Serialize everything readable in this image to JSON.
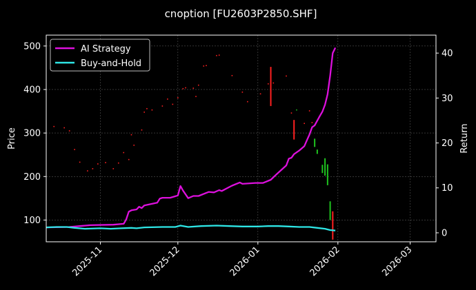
{
  "chart_data": {
    "type": "line",
    "title": "cnoption [FU2603P2850.SHF]",
    "ylabel_left": "Price",
    "ylabel_right": "Return",
    "xlim": [
      "2025-10-11",
      "2026-03-11"
    ],
    "ylim_left": [
      50,
      525
    ],
    "ylim_right": [
      -2,
      44
    ],
    "grid": true,
    "legend_position": "top-left",
    "x_ticks": [
      "2025-11-01",
      "2025-12-01",
      "2026-01-01",
      "2026-02-01",
      "2026-03-01"
    ],
    "x_tick_labels": [
      "2025-11",
      "2025-12",
      "2026-01",
      "2026-02",
      "2026-03"
    ],
    "y_ticks_left": [
      100,
      200,
      300,
      400,
      500
    ],
    "y_ticks_right": [
      0,
      10,
      20,
      30,
      40
    ],
    "legend": [
      "AI Strategy",
      "Buy-and-Hold"
    ],
    "colors": {
      "ai": "#dd10dd",
      "bh": "#2ee6e6",
      "up": "#ff2020",
      "down": "#1fc41f",
      "grid": "#555555"
    },
    "series": [
      {
        "name": "AI Strategy",
        "axis": "right",
        "points": [
          [
            "2025-10-11",
            1.2
          ],
          [
            "2025-10-20",
            1.3
          ],
          [
            "2025-10-24",
            1.5
          ],
          [
            "2025-10-28",
            1.7
          ],
          [
            "2025-11-06",
            1.8
          ],
          [
            "2025-11-10",
            2.0
          ],
          [
            "2025-11-11",
            3.0
          ],
          [
            "2025-11-12",
            4.7
          ],
          [
            "2025-11-13",
            5.0
          ],
          [
            "2025-11-15",
            5.2
          ],
          [
            "2025-11-16",
            5.8
          ],
          [
            "2025-11-17",
            5.5
          ],
          [
            "2025-11-18",
            6.1
          ],
          [
            "2025-11-23",
            6.7
          ],
          [
            "2025-11-24",
            7.6
          ],
          [
            "2025-11-25",
            7.8
          ],
          [
            "2025-11-28",
            7.8
          ],
          [
            "2025-12-01",
            8.3
          ],
          [
            "2025-12-02",
            10.4
          ],
          [
            "2025-12-03",
            9.4
          ],
          [
            "2025-12-05",
            7.7
          ],
          [
            "2025-12-07",
            8.2
          ],
          [
            "2025-12-09",
            8.2
          ],
          [
            "2025-12-13",
            9.1
          ],
          [
            "2025-12-15",
            9.0
          ],
          [
            "2025-12-17",
            9.5
          ],
          [
            "2025-12-18",
            9.3
          ],
          [
            "2025-12-21",
            10.2
          ],
          [
            "2025-12-22",
            10.5
          ],
          [
            "2025-12-25",
            11.2
          ],
          [
            "2025-12-26",
            10.9
          ],
          [
            "2025-12-31",
            11.1
          ],
          [
            "2026-01-03",
            11.1
          ],
          [
            "2026-01-06",
            11.8
          ],
          [
            "2026-01-08",
            12.9
          ],
          [
            "2026-01-12",
            15.0
          ],
          [
            "2026-01-13",
            16.5
          ],
          [
            "2026-01-14",
            16.7
          ],
          [
            "2026-01-15",
            17.5
          ],
          [
            "2026-01-17",
            18.3
          ],
          [
            "2026-01-19",
            19.3
          ],
          [
            "2026-01-20",
            20.6
          ],
          [
            "2026-01-21",
            21.9
          ],
          [
            "2026-01-22",
            23.5
          ],
          [
            "2026-01-23",
            23.9
          ],
          [
            "2026-01-25",
            26.0
          ],
          [
            "2026-01-26",
            27.0
          ],
          [
            "2026-01-27",
            28.5
          ],
          [
            "2026-01-28",
            30.8
          ],
          [
            "2026-01-29",
            35.0
          ],
          [
            "2026-01-30",
            40.0
          ],
          [
            "2026-01-31",
            41.2
          ]
        ]
      },
      {
        "name": "Buy-and-Hold",
        "axis": "right",
        "points": [
          [
            "2025-10-11",
            1.2
          ],
          [
            "2025-10-15",
            1.3
          ],
          [
            "2025-10-19",
            1.3
          ],
          [
            "2025-10-22",
            1.1
          ],
          [
            "2025-10-26",
            0.9
          ],
          [
            "2025-11-01",
            1.0
          ],
          [
            "2025-11-05",
            0.9
          ],
          [
            "2025-11-09",
            1.0
          ],
          [
            "2025-11-13",
            1.1
          ],
          [
            "2025-11-15",
            1.0
          ],
          [
            "2025-11-18",
            1.2
          ],
          [
            "2025-11-25",
            1.3
          ],
          [
            "2025-11-30",
            1.3
          ],
          [
            "2025-12-02",
            1.6
          ],
          [
            "2025-12-05",
            1.3
          ],
          [
            "2025-12-10",
            1.5
          ],
          [
            "2025-12-16",
            1.6
          ],
          [
            "2025-12-21",
            1.5
          ],
          [
            "2025-12-26",
            1.4
          ],
          [
            "2026-01-01",
            1.4
          ],
          [
            "2026-01-05",
            1.5
          ],
          [
            "2026-01-09",
            1.5
          ],
          [
            "2026-01-13",
            1.4
          ],
          [
            "2026-01-17",
            1.3
          ],
          [
            "2026-01-21",
            1.3
          ],
          [
            "2026-01-24",
            1.1
          ],
          [
            "2026-01-27",
            0.9
          ],
          [
            "2026-01-29",
            0.6
          ],
          [
            "2026-01-31",
            0.5
          ]
        ]
      }
    ],
    "price_marks": [
      {
        "date": "2025-10-14",
        "value": 315,
        "dir": "up"
      },
      {
        "date": "2025-10-18",
        "value": 312,
        "dir": "up"
      },
      {
        "date": "2025-10-20",
        "value": 305,
        "dir": "up"
      },
      {
        "date": "2025-10-22",
        "value": 262,
        "dir": "up"
      },
      {
        "date": "2025-10-24",
        "value": 233,
        "dir": "up"
      },
      {
        "date": "2025-10-27",
        "value": 213,
        "dir": "up"
      },
      {
        "date": "2025-10-29",
        "value": 218,
        "dir": "up"
      },
      {
        "date": "2025-10-31",
        "value": 229,
        "dir": "up"
      },
      {
        "date": "2025-11-03",
        "value": 232,
        "dir": "up"
      },
      {
        "date": "2025-11-06",
        "value": 218,
        "dir": "up"
      },
      {
        "date": "2025-11-08",
        "value": 231,
        "dir": "up"
      },
      {
        "date": "2025-11-10",
        "value": 255,
        "dir": "up"
      },
      {
        "date": "2025-11-12",
        "value": 239,
        "dir": "up"
      },
      {
        "date": "2025-11-13",
        "value": 296,
        "dir": "up"
      },
      {
        "date": "2025-11-14",
        "value": 272,
        "dir": "up"
      },
      {
        "date": "2025-11-17",
        "value": 307,
        "dir": "up"
      },
      {
        "date": "2025-11-18",
        "value": 348,
        "dir": "up"
      },
      {
        "date": "2025-11-19",
        "value": 356,
        "dir": "up"
      },
      {
        "date": "2025-11-21",
        "value": 353,
        "dir": "up"
      },
      {
        "date": "2025-11-25",
        "value": 362,
        "dir": "up"
      },
      {
        "date": "2025-11-27",
        "value": 378,
        "dir": "up"
      },
      {
        "date": "2025-11-29",
        "value": 366,
        "dir": "up"
      },
      {
        "date": "2025-12-01",
        "value": 381,
        "dir": "up"
      },
      {
        "date": "2025-12-03",
        "value": 402,
        "dir": "up"
      },
      {
        "date": "2025-12-04",
        "value": 404,
        "dir": "up"
      },
      {
        "date": "2025-12-07",
        "value": 403,
        "dir": "up"
      },
      {
        "date": "2025-12-08",
        "value": 384,
        "dir": "up"
      },
      {
        "date": "2025-12-09",
        "value": 410,
        "dir": "up"
      },
      {
        "date": "2025-12-11",
        "value": 454,
        "dir": "up"
      },
      {
        "date": "2025-12-12",
        "value": 455,
        "dir": "up"
      },
      {
        "date": "2025-12-16",
        "value": 478,
        "dir": "up"
      },
      {
        "date": "2025-12-17",
        "value": 479,
        "dir": "up"
      },
      {
        "date": "2025-12-22",
        "value": 432,
        "dir": "up"
      },
      {
        "date": "2025-12-26",
        "value": 394,
        "dir": "up"
      },
      {
        "date": "2025-12-28",
        "value": 372,
        "dir": "up"
      },
      {
        "date": "2026-01-02",
        "value": 390,
        "dir": "up"
      },
      {
        "date": "2026-01-05",
        "value": 413,
        "dir": "up"
      },
      {
        "date": "2026-01-06",
        "value": 452,
        "dir": "up",
        "low": 362
      },
      {
        "date": "2026-01-07",
        "value": 415,
        "dir": "up"
      },
      {
        "date": "2026-01-12",
        "value": 431,
        "dir": "up"
      },
      {
        "date": "2026-01-14",
        "value": 346,
        "dir": "up"
      },
      {
        "date": "2026-01-15",
        "value": 330,
        "dir": "up",
        "low": 285
      },
      {
        "date": "2026-01-16",
        "value": 353,
        "dir": "down"
      },
      {
        "date": "2026-01-19",
        "value": 322,
        "dir": "up"
      },
      {
        "date": "2026-01-21",
        "value": 351,
        "dir": "up"
      },
      {
        "date": "2026-01-22",
        "value": 324,
        "dir": "up"
      },
      {
        "date": "2026-01-23",
        "value": 287,
        "dir": "down",
        "low": 268
      },
      {
        "date": "2026-01-24",
        "value": 262,
        "dir": "down",
        "low": 252
      },
      {
        "date": "2026-01-26",
        "value": 227,
        "dir": "down",
        "low": 208
      },
      {
        "date": "2026-01-27",
        "value": 242,
        "dir": "down",
        "low": 202
      },
      {
        "date": "2026-01-28",
        "value": 228,
        "dir": "down",
        "low": 180
      },
      {
        "date": "2026-01-29",
        "value": 143,
        "dir": "down",
        "low": 100
      },
      {
        "date": "2026-01-30",
        "value": 120,
        "dir": "up",
        "low": 55
      }
    ]
  }
}
